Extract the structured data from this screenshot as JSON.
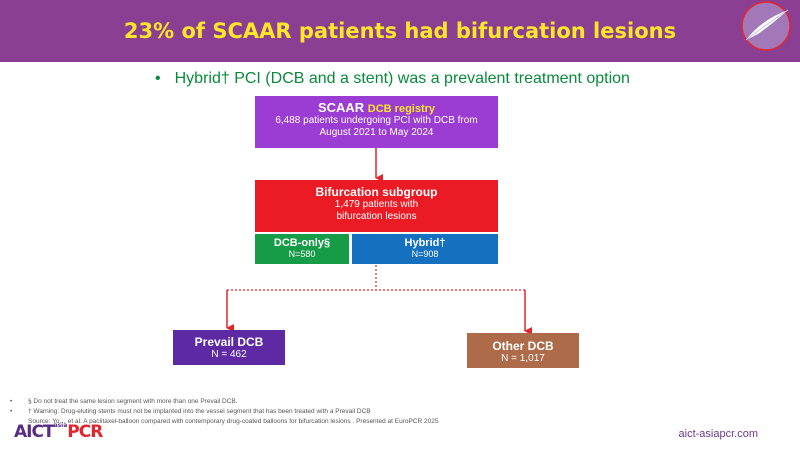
{
  "header": {
    "title": "23% of SCAAR patients had bifurcation lesions"
  },
  "bullet": {
    "marker": "•",
    "text": "Hybrid† PCI (DCB and a stent) was a prevalent treatment option"
  },
  "flow": {
    "registry": {
      "title": "SCAAR",
      "title_small": "DCB registry",
      "line1": "6,488 patients undergoing PCI with DCB from",
      "line2": "August 2021 to May 2024"
    },
    "bifurcation": {
      "title": "Bifurcation subgroup",
      "line1": "1,479 patients with",
      "line2": "bifurcation lesions"
    },
    "dcb_only": {
      "title": "DCB-only§",
      "n": "N=580"
    },
    "hybrid": {
      "title": "Hybrid†",
      "n": "N=908"
    },
    "prevail": {
      "title": "Prevail DCB",
      "n": "N = 462"
    },
    "other": {
      "title": "Other DCB",
      "n": "N = 1,017"
    }
  },
  "footnotes": [
    "§ Do not treat the same lesion segment with more than one Prevail DCB.",
    "† Warning: Drug-eluting stents must not be implanted into the vessel segment that has been treated with a Prevail DCB",
    "Source: Yo… et al. A paclitaxel-balloon compared with contemporary drug-coated balloons for bifurcation lesions . Presented at EuroPCR 2025"
  ],
  "brand": {
    "part1": "AICT",
    "part2": "PCR",
    "tiny": "asia"
  },
  "url": "aict-asiapcr.com",
  "colors": {
    "header": "#8b3f93",
    "title": "#ffe629",
    "registry": "#9b3dd3",
    "bifurcation": "#ea1b24",
    "dcb_only": "#169b47",
    "hybrid": "#1570c0",
    "prevail": "#5d2aa3",
    "other": "#ad6b4a",
    "arrow": "#e3262d"
  }
}
